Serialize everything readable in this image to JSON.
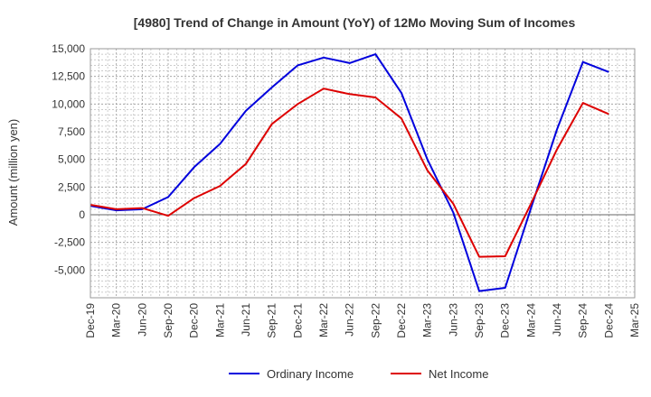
{
  "chart_data": {
    "type": "line",
    "title": "[4980]  Trend of Change in Amount (YoY) of 12Mo Moving Sum of Incomes",
    "xlabel": "",
    "ylabel": "Amount (million yen)",
    "ylim": [
      -7500,
      15000
    ],
    "yticks": [
      15000,
      12500,
      10000,
      7500,
      5000,
      2500,
      0,
      -2500,
      -5000
    ],
    "ytick_labels": [
      "15,000",
      "12,500",
      "10,000",
      "7,500",
      "5,000",
      "2,500",
      "0",
      "-2,500",
      "-5,000"
    ],
    "x_tick_labels": [
      "Dec-19",
      "Mar-20",
      "Jun-20",
      "Sep-20",
      "Dec-20",
      "Mar-21",
      "Jun-21",
      "Sep-21",
      "Dec-21",
      "Mar-22",
      "Jun-22",
      "Sep-22",
      "Dec-22",
      "Mar-23",
      "Jun-23",
      "Sep-23",
      "Dec-23",
      "Mar-24",
      "Jun-24",
      "Sep-24",
      "Dec-24",
      "Mar-25"
    ],
    "grid": true,
    "legend_position": "bottom",
    "series": [
      {
        "name": "Ordinary Income",
        "color": "#0000dd",
        "values": [
          800,
          400,
          500,
          1600,
          4300,
          6400,
          9400,
          11500,
          13500,
          14200,
          13700,
          14500,
          11000,
          5000,
          200,
          -6900,
          -6600,
          600,
          7700,
          13800,
          12900
        ]
      },
      {
        "name": "Net Income",
        "color": "#dd0000",
        "values": [
          900,
          500,
          600,
          -100,
          1500,
          2600,
          4600,
          8200,
          10000,
          11400,
          10900,
          10600,
          8700,
          4000,
          1000,
          -3800,
          -3750,
          1000,
          5900,
          10100,
          9100
        ]
      }
    ]
  }
}
